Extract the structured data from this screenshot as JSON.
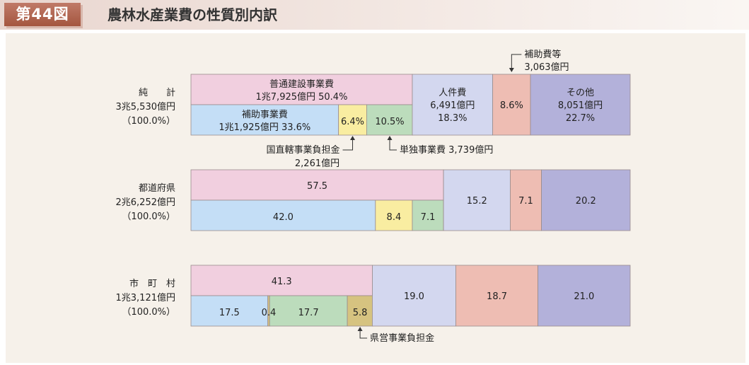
{
  "header": {
    "figure_number": "第44図",
    "title": "農林水産業費の性質別内訳"
  },
  "colors": {
    "pink": "#f1cfdf",
    "blue": "#c4def6",
    "yellow": "#f9eda1",
    "green": "#bcdcbc",
    "lavender": "#d3d7ef",
    "salmon": "#eebdb3",
    "purple": "#b3b1da",
    "khaki": "#d6c380"
  },
  "chart_data": {
    "type": "bar",
    "orientation": "horizontal-stacked",
    "unit": "%",
    "categories": [
      {
        "name": "純　　計",
        "total": "3兆5,530億円",
        "share": "（100.0%）"
      },
      {
        "name": "都道府県",
        "total": "2兆6,252億円",
        "share": "（100.0%）"
      },
      {
        "name": "市　町　村",
        "total": "1兆3,121億円",
        "share": "（100.0%）"
      }
    ],
    "groups": [
      {
        "name": "普通建設事業費",
        "values": [
          50.4,
          57.5,
          41.3
        ],
        "value_labels": [
          "50.4%",
          "57.5",
          "41.3"
        ],
        "amount": "1兆7,925億円",
        "sub": [
          {
            "name": "補助事業費",
            "values": [
              33.6,
              42.0,
              17.5
            ],
            "value_labels": [
              "33.6%",
              "42.0",
              "17.5"
            ],
            "amount": "1兆1,925億円",
            "color": "blue"
          },
          {
            "name": "国直轄事業負担金",
            "values": [
              6.4,
              8.4,
              0.0
            ],
            "value_labels": [
              "6.4%",
              "8.4",
              ""
            ],
            "amount": "2,261億円",
            "color": "yellow"
          },
          {
            "name": "県営事業負担金",
            "values": [
              0.0,
              0.0,
              0.4
            ],
            "value_labels": [
              "",
              "",
              "0.4"
            ],
            "amount": "",
            "color": "khaki"
          },
          {
            "name": "単独事業費",
            "values": [
              10.5,
              7.1,
              17.7
            ],
            "value_labels": [
              "10.5%",
              "7.1",
              "17.7"
            ],
            "amount": "3,739億円",
            "color": "green"
          },
          {
            "name": "その他",
            "values": [
              0.0,
              0.0,
              5.8
            ],
            "value_labels": [
              "",
              "",
              "5.8"
            ],
            "amount": "",
            "color": "khaki"
          }
        ]
      },
      {
        "name": "人件費",
        "values": [
          18.3,
          15.2,
          19.0
        ],
        "value_labels": [
          "18.3%",
          "15.2",
          "19.0"
        ],
        "amount": "6,491億円",
        "color": "lavender"
      },
      {
        "name": "補助費等",
        "values": [
          8.6,
          7.1,
          18.7
        ],
        "value_labels": [
          "8.6%",
          "7.1",
          "18.7"
        ],
        "amount": "3,063億円",
        "color": "salmon"
      },
      {
        "name": "その他",
        "values": [
          22.7,
          20.2,
          21.0
        ],
        "value_labels": [
          "22.7%",
          "20.2",
          "21.0"
        ],
        "amount": "8,051億円",
        "color": "purple"
      }
    ],
    "callouts": [
      {
        "text": "補助費等",
        "amount": "3,063億円"
      },
      {
        "text": "国直轄事業負担金",
        "amount": "2,261億円"
      },
      {
        "text": "単独事業費 3,739億円"
      },
      {
        "text": "県営事業負担金"
      }
    ]
  }
}
